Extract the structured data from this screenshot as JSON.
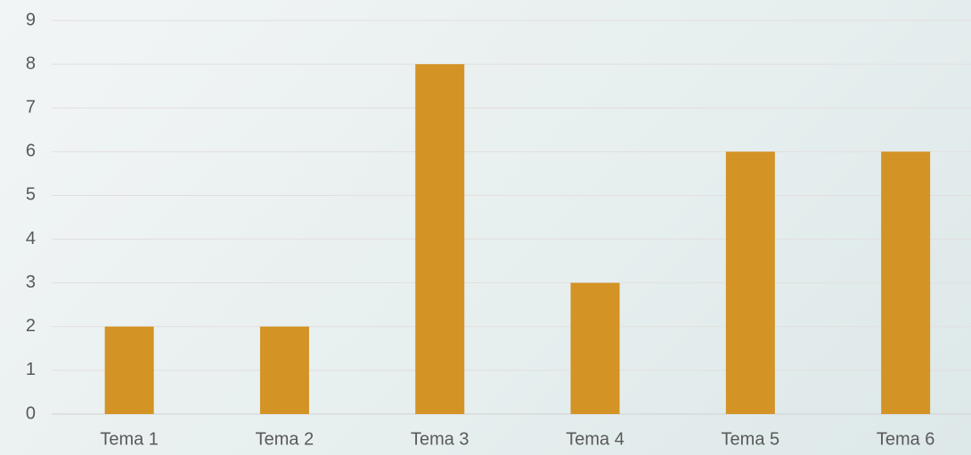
{
  "chart_data": {
    "type": "bar",
    "categories": [
      "Tema 1",
      "Tema 2",
      "Tema 3",
      "Tema 4",
      "Tema 5",
      "Tema 6"
    ],
    "values": [
      2,
      2,
      8,
      3,
      6,
      6
    ],
    "color": "#d39325",
    "ylim": [
      0,
      9
    ],
    "yticks": [
      0,
      1,
      2,
      3,
      4,
      5,
      6,
      7,
      8,
      9
    ],
    "grid": true
  }
}
